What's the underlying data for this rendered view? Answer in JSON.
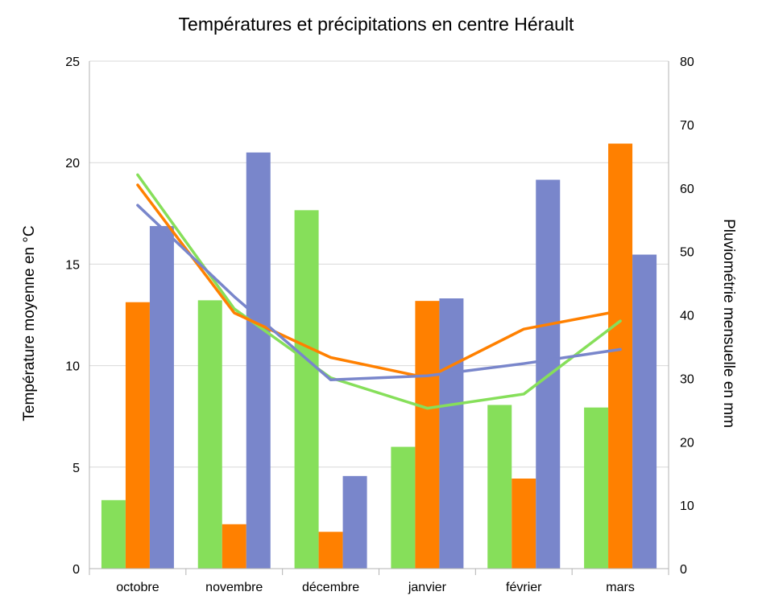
{
  "chart_data": {
    "type": "bar",
    "title": "Températures et précipitations en centre Hérault",
    "categories": [
      "octobre",
      "novembre",
      "décembre",
      "janvier",
      "février",
      "mars"
    ],
    "y_left": {
      "label": "Température moyenne en °C",
      "range": [
        0,
        25
      ],
      "ticks": [
        0,
        5,
        10,
        15,
        20,
        25
      ]
    },
    "y_right": {
      "label": "Pluviométrie mensuelle en mm",
      "range": [
        0,
        80
      ],
      "ticks": [
        0,
        10,
        20,
        30,
        40,
        50,
        60,
        70,
        80
      ]
    },
    "grid": true,
    "legend": "none",
    "bar_series": [
      {
        "color": "#86df5a",
        "axis": "right",
        "values": [
          10.8,
          42.3,
          56.5,
          19.2,
          25.8,
          25.4
        ]
      },
      {
        "color": "#ff8000",
        "axis": "right",
        "values": [
          42.0,
          7.0,
          5.8,
          42.2,
          14.2,
          67.0
        ]
      },
      {
        "color": "#7986cb",
        "axis": "right",
        "values": [
          54.0,
          65.6,
          14.6,
          42.6,
          61.3,
          49.5
        ]
      }
    ],
    "line_series": [
      {
        "color": "#86df5a",
        "axis": "left",
        "values": [
          19.4,
          12.8,
          9.4,
          7.9,
          8.6,
          12.2
        ]
      },
      {
        "color": "#ff8000",
        "axis": "left",
        "values": [
          18.9,
          12.6,
          10.4,
          9.4,
          11.8,
          12.7
        ]
      },
      {
        "color": "#7986cb",
        "axis": "left",
        "values": [
          17.9,
          13.4,
          9.3,
          9.5,
          10.1,
          10.8
        ]
      }
    ]
  }
}
